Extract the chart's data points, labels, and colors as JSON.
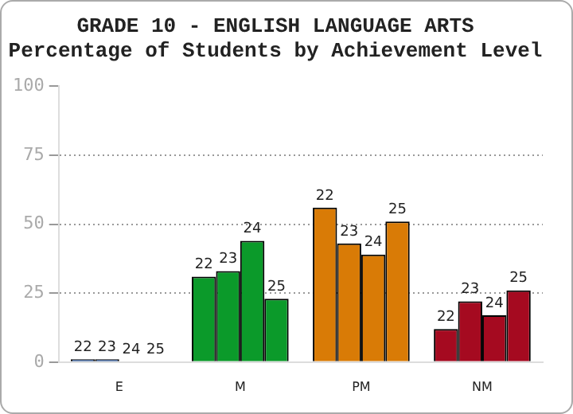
{
  "chart_data": {
    "type": "bar",
    "title": "GRADE 10 - ENGLISH LANGUAGE ARTS",
    "subtitle": "Percentage of Students by Achievement Level",
    "categories": [
      "E",
      "M",
      "PM",
      "NM"
    ],
    "series": [
      {
        "name": "22",
        "colors": [
          "#1c4f9c",
          "#0b9a2a",
          "#d97b06",
          "#a50a20"
        ],
        "values": [
          1,
          31,
          56,
          12
        ]
      },
      {
        "name": "23",
        "colors": [
          "#1c4f9c",
          "#0b9a2a",
          "#d97b06",
          "#a50a20"
        ],
        "values": [
          1,
          33,
          43,
          22
        ]
      },
      {
        "name": "24",
        "colors": [
          "#1c4f9c",
          "#0b9a2a",
          "#d97b06",
          "#a50a20"
        ],
        "values": [
          0,
          44,
          39,
          17
        ]
      },
      {
        "name": "25",
        "colors": [
          "#1c4f9c",
          "#0b9a2a",
          "#d97b06",
          "#a50a20"
        ],
        "values": [
          0,
          23,
          51,
          26
        ]
      }
    ],
    "ylim": [
      0,
      100
    ],
    "yticks": [
      0,
      25,
      50,
      75,
      100
    ],
    "grid": "y",
    "legend": false
  }
}
